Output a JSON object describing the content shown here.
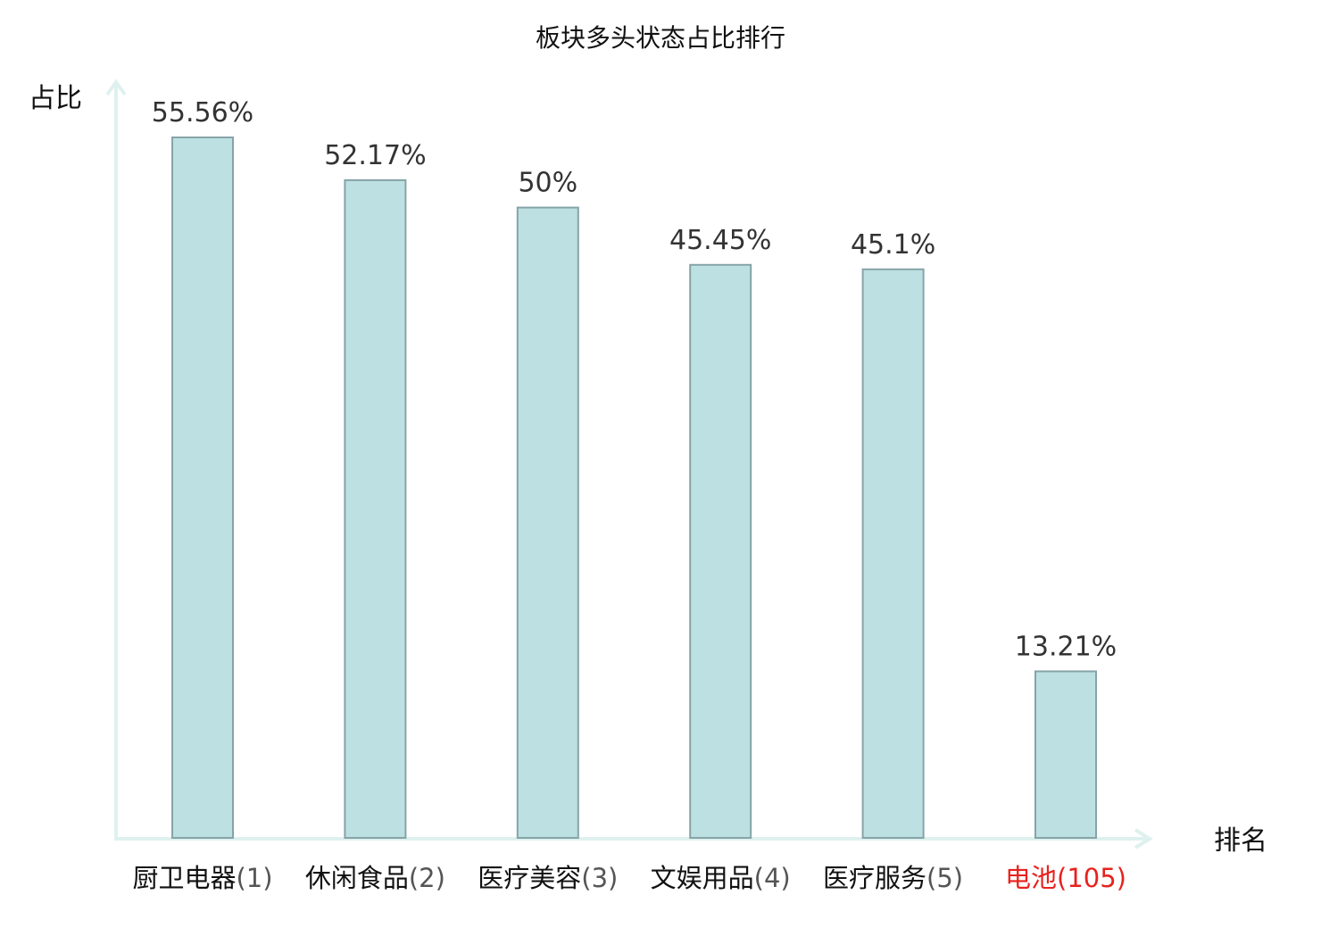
{
  "chart_data": {
    "type": "bar",
    "title": "板块多头状态占比排行",
    "ylabel": "占比",
    "xlabel": "排名",
    "categories": [
      "厨卫电器",
      "休闲食品",
      "医疗美容",
      "文娱用品",
      "医疗服务",
      "电池"
    ],
    "ranks": [
      "(1)",
      "(2)",
      "(3)",
      "(4)",
      "(5)",
      "(105)"
    ],
    "values": [
      55.56,
      52.17,
      50,
      45.45,
      45.1,
      13.21
    ],
    "value_labels": [
      "55.56%",
      "52.17%",
      "50%",
      "45.45%",
      "45.1%",
      "13.21%"
    ],
    "highlight_index": 5,
    "ylim": [
      0,
      60
    ],
    "grid": false,
    "colors": {
      "bar_fill": "#bde0e3",
      "bar_stroke": "#86a4a8",
      "axis": "#dff1ee",
      "highlight": "#e8221d",
      "text": "#111111",
      "value_text": "#333333",
      "rank_text": "#555555"
    }
  }
}
